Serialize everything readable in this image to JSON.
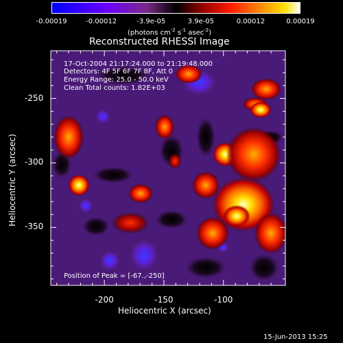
{
  "colorbar": {
    "tick_labels": [
      "-0.00019",
      "-0.00012",
      "-3.9e-05",
      "3.9e-05",
      "0.00012",
      "0.00019"
    ],
    "unit_label": "(photons cm",
    "unit_sup1": "-2",
    "unit_mid": " s",
    "unit_sup2": "-1",
    "unit_end": " asec",
    "unit_sup3": "-2",
    "unit_close": ")"
  },
  "info": {
    "time": "17-Oct-2004 21:17:24.000 to 21:19:48.000",
    "detectors": "Detectors: 4F 5F 6F 7F 8F, Att 0",
    "energy": "Energy Range: 25.0 - 50.0 keV",
    "clean": "Clean     Total counts: 1.82E+03",
    "peak": "Position of Peak = [-67.,-250]"
  },
  "footer": {
    "date": "15-Jun-2013 15:25"
  },
  "chart_data": {
    "type": "heatmap",
    "title": "Reconstructed RHESSI Image",
    "xlabel": "Heliocentric X (arcsec)",
    "ylabel": "Heliocentric Y (arcsec)",
    "xlim": [
      -245,
      -48
    ],
    "ylim": [
      -395,
      -213
    ],
    "x_ticks": [
      {
        "value": -200,
        "label": "-200"
      },
      {
        "value": -150,
        "label": "-150"
      },
      {
        "value": -100,
        "label": "-100"
      }
    ],
    "y_ticks": [
      {
        "value": -250,
        "label": "-250"
      },
      {
        "value": -300,
        "label": "-300"
      },
      {
        "value": -350,
        "label": "-350"
      }
    ],
    "colorbar_range": [
      -0.00019,
      0.00019
    ],
    "peak_position": [
      -67,
      -250
    ]
  }
}
